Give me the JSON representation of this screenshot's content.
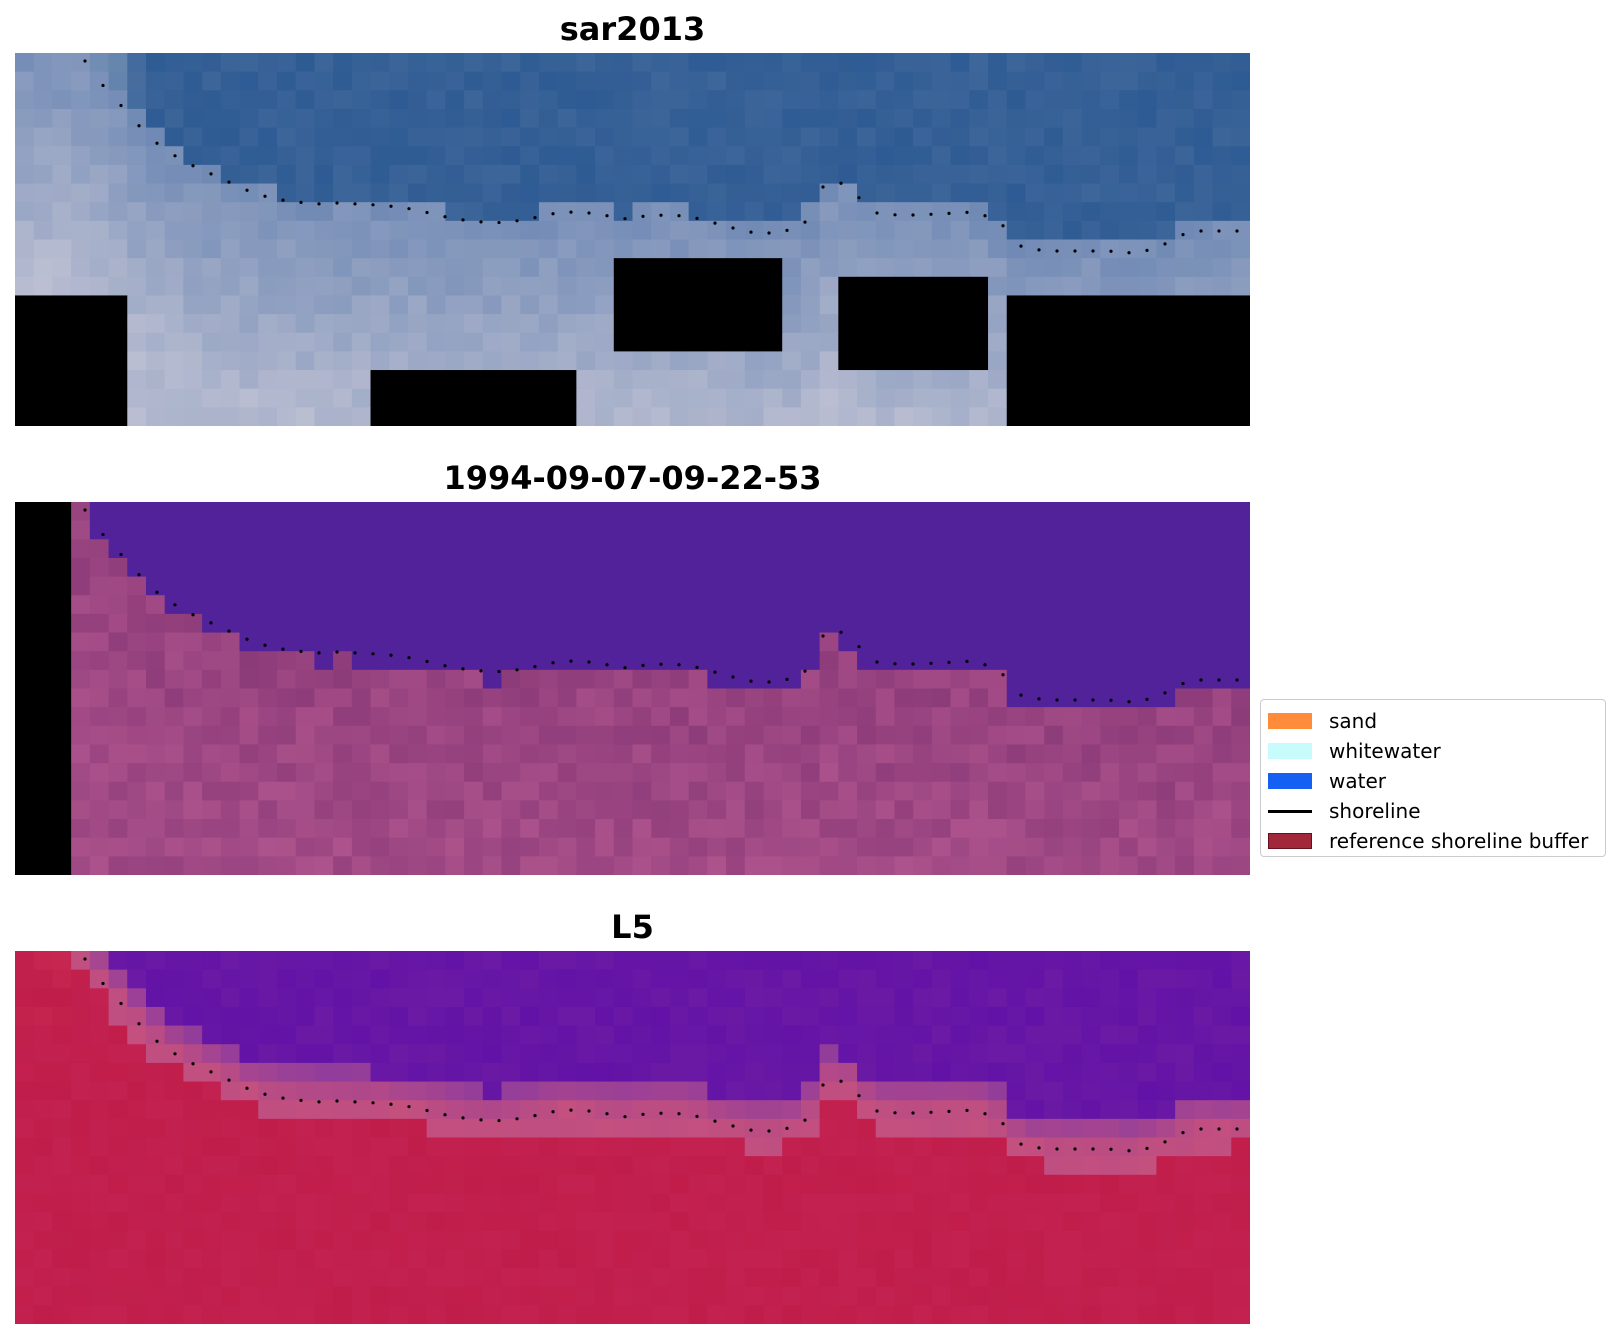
{
  "panels": [
    {
      "title": "sar2013",
      "layer": "rgb"
    },
    {
      "title": "1994-09-07-09-22-53",
      "layer": "classification"
    },
    {
      "title": "L5",
      "layer": "index"
    }
  ],
  "legend": {
    "items": [
      {
        "label": "sand",
        "color": "#ff8c3a",
        "kind": "patch"
      },
      {
        "label": "whitewater",
        "color": "#c8fcfc",
        "kind": "patch"
      },
      {
        "label": "water",
        "color": "#1460f2",
        "kind": "patch"
      },
      {
        "label": "shoreline",
        "color": "#000000",
        "kind": "line"
      },
      {
        "label": "reference shoreline buffer",
        "color": "#a0283a",
        "kind": "patch"
      }
    ]
  },
  "colors": {
    "rgb_water": "#2e5b93",
    "rgb_beach": "#b9bdd1",
    "class_water": "#52229a",
    "class_land": "#9e4a86",
    "index_water": "#6a1aa4",
    "index_buffer": "#c4507e",
    "index_land": "#c01d4a",
    "shoreline": "#000000"
  }
}
